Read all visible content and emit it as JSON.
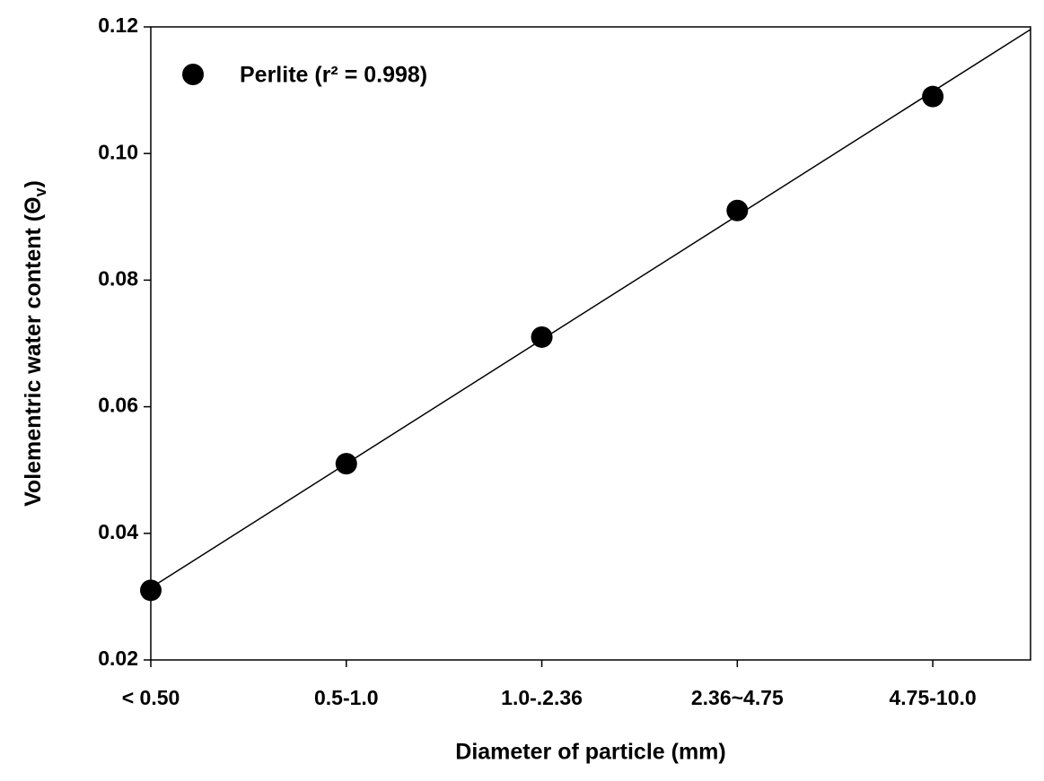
{
  "chart_data": {
    "type": "scatter",
    "x_label": "Diameter of particle (mm)",
    "y_label": [
      "Volementric water content (Θ",
      "v",
      ")"
    ],
    "categories": [
      "< 0.50",
      "0.5-1.0",
      "1.0-.2.36",
      "2.36~4.75",
      "4.75-10.0"
    ],
    "series": [
      {
        "name": "Perlite (r² = 0.998)",
        "color": "#000000",
        "values": [
          0.031,
          0.051,
          0.071,
          0.091,
          0.109
        ]
      }
    ],
    "ylim": [
      0.02,
      0.12
    ],
    "yticks": [
      0.02,
      0.04,
      0.06,
      0.08,
      {
        "value": 0.1,
        "label": "0.10"
      },
      0.12
    ],
    "fit_line": true
  }
}
